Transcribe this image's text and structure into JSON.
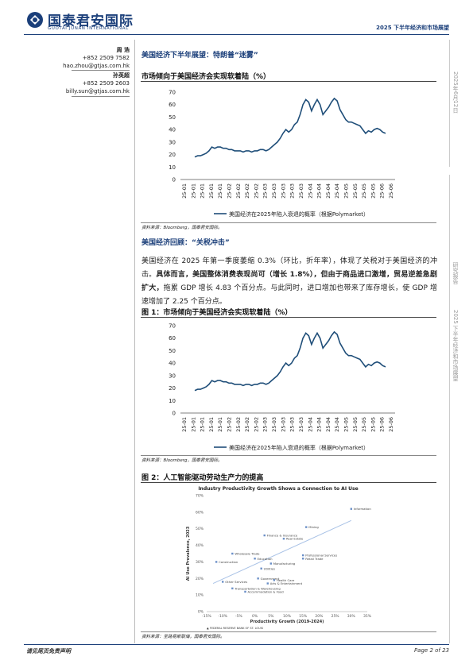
{
  "header": {
    "logo_cn": "国泰君安国际",
    "logo_en": "GUOTAI JUNAN INTERNATIONAL",
    "report_title": "2025 下半年经济和市场展望"
  },
  "contacts": [
    {
      "name": "周 浩",
      "phone": "+852 2509 7582",
      "email": "hao.zhou@gtjas.com.hk"
    },
    {
      "name": "孙英超",
      "phone": "+852 2509 2603",
      "email": "billy.sun@gtjas.com.hk"
    }
  ],
  "section1": {
    "title": "美国经济下半年展望：特朗普“迷雾”"
  },
  "chart1_title": "市场倾向于美国经济会实现软着陆（%）",
  "source_a": "资料来源：Bloomberg，国泰君安国际。",
  "section2": {
    "title": "美国经济回顾：“关税冲击”"
  },
  "paragraph": {
    "p1": "美国经济在 2025 年第一季度萎缩 0.3%（环比，折年率），体现了关税对于美国经济的冲击。",
    "p2": "具体而言，美国整体消费表现尚可（增长 1.8%），但由于商品进口激增，贸易逆差急剧扩大，",
    "p3": "拖累 GDP 增长 4.83 个百分点。与此同时，进口增加也带来了库存增长，使 GDP 增速增加了 2.25 个百分点。"
  },
  "fig1_title": "图 1：市场倾向于美国经济会实现软着陆（%）",
  "source_b": "资料来源：Bloomberg，国泰君安国际。",
  "fig2_title": "图 2：人工智能驱动劳动生产力的提高",
  "source_c": "资料来源：圣路易斯联储，国泰君安国际。",
  "right_margin": {
    "date": "2025年6月12日",
    "label": "研究报告",
    "title": "2025 下半年经济和市场展望"
  },
  "footer": {
    "left": "请见尾页免责声明",
    "right": "Page 2 of 23"
  },
  "colors": {
    "brand": "#1b3f7a",
    "line": "#1f4e79",
    "scatter": "#6a8fc7"
  },
  "chart_data": [
    {
      "type": "line",
      "title": "",
      "xlabel": "",
      "ylabel": "",
      "ylim": [
        0,
        70
      ],
      "yticks": [
        0,
        10,
        20,
        30,
        40,
        50,
        60,
        70
      ],
      "xticks": [
        "25-01",
        "25-01",
        "25-01",
        "25-01",
        "25-01",
        "25-02",
        "25-02",
        "25-02",
        "25-02",
        "25-03",
        "25-03",
        "25-03",
        "25-03",
        "25-03",
        "25-04",
        "25-04",
        "25-04",
        "25-04",
        "25-05",
        "25-05",
        "25-05",
        "25-05",
        "25-06",
        "25-06"
      ],
      "grid": false,
      "legend": "bottom",
      "series": [
        {
          "name": "美国经济在2025年陷入衰退的概率（根据Polymarket）",
          "values": [
            18,
            19,
            19,
            20,
            21,
            23,
            26,
            25,
            26,
            26,
            25,
            25,
            24,
            24,
            23,
            23,
            23,
            22,
            23,
            23,
            22,
            23,
            23,
            24,
            24,
            23,
            24,
            26,
            28,
            30,
            33,
            37,
            40,
            38,
            40,
            44,
            46,
            52,
            60,
            64,
            62,
            55,
            60,
            64,
            60,
            52,
            55,
            58,
            62,
            65,
            63,
            56,
            52,
            48,
            46,
            46,
            45,
            44,
            43,
            40,
            37,
            39,
            38,
            40,
            41,
            40,
            38,
            37
          ]
        }
      ]
    },
    {
      "type": "line",
      "title": "",
      "xlabel": "",
      "ylabel": "",
      "ylim": [
        0,
        70
      ],
      "yticks": [
        0,
        10,
        20,
        30,
        40,
        50,
        60,
        70
      ],
      "xticks": [
        "25-01",
        "25-01",
        "25-01",
        "25-01",
        "25-01",
        "25-02",
        "25-02",
        "25-02",
        "25-02",
        "25-03",
        "25-03",
        "25-03",
        "25-03",
        "25-03",
        "25-04",
        "25-04",
        "25-04",
        "25-04",
        "25-05",
        "25-05",
        "25-05",
        "25-05",
        "25-06",
        "25-06"
      ],
      "grid": false,
      "legend": "bottom",
      "series": [
        {
          "name": "美国经济在2025年陷入衰退的概率（根据Polymarket）",
          "values": [
            18,
            19,
            19,
            20,
            21,
            23,
            26,
            25,
            26,
            26,
            25,
            25,
            24,
            24,
            23,
            23,
            23,
            22,
            23,
            23,
            22,
            23,
            23,
            24,
            24,
            23,
            24,
            26,
            28,
            30,
            33,
            37,
            40,
            38,
            40,
            44,
            46,
            52,
            60,
            64,
            62,
            55,
            60,
            64,
            60,
            52,
            55,
            58,
            62,
            65,
            63,
            56,
            52,
            48,
            46,
            46,
            45,
            44,
            43,
            40,
            37,
            39,
            38,
            40,
            41,
            40,
            38,
            37
          ]
        }
      ]
    },
    {
      "type": "scatter",
      "title": "Industry Productivity Growth Shows a Connection to AI Use",
      "xlabel": "Productivity Growth (2019-2024)",
      "ylabel": "AI Use Prevalence, 2023",
      "xlim": [
        -15,
        35
      ],
      "ylim": [
        0,
        70
      ],
      "xticks": [
        "-15%",
        "-10%",
        "-5%",
        "0%",
        "5%",
        "10%",
        "15%",
        "20%",
        "25%",
        "30%",
        "35%"
      ],
      "yticks": [
        "0%",
        "10%",
        "20%",
        "30%",
        "40%",
        "50%",
        "60%",
        "70%"
      ],
      "credit": "FEDERAL RESERVE BANK OF ST. LOUIS",
      "points": [
        {
          "label": "Information",
          "x": 30,
          "y": 62
        },
        {
          "label": "Mining",
          "x": 16,
          "y": 51
        },
        {
          "label": "Finance & Insurance",
          "x": 3,
          "y": 46
        },
        {
          "label": "Real Estate",
          "x": 9,
          "y": 44
        },
        {
          "label": "Wholesale Trade",
          "x": -7,
          "y": 35
        },
        {
          "label": "Professional Services",
          "x": 15,
          "y": 34
        },
        {
          "label": "Retail Trade",
          "x": 15,
          "y": 32
        },
        {
          "label": "Education",
          "x": 0,
          "y": 32
        },
        {
          "label": "Construction",
          "x": -12,
          "y": 30
        },
        {
          "label": "Manufacturing",
          "x": 5,
          "y": 29
        },
        {
          "label": "Utilities",
          "x": 2,
          "y": 26
        },
        {
          "label": "Government",
          "x": 1,
          "y": 20
        },
        {
          "label": "Health Care",
          "x": 6,
          "y": 19
        },
        {
          "label": "Other Services",
          "x": -10,
          "y": 18
        },
        {
          "label": "Arts & Entertainment",
          "x": 4,
          "y": 17
        },
        {
          "label": "Transportation & Warehousing",
          "x": -7,
          "y": 14
        },
        {
          "label": "Accommodation & Food",
          "x": -3,
          "y": 12
        }
      ]
    }
  ]
}
